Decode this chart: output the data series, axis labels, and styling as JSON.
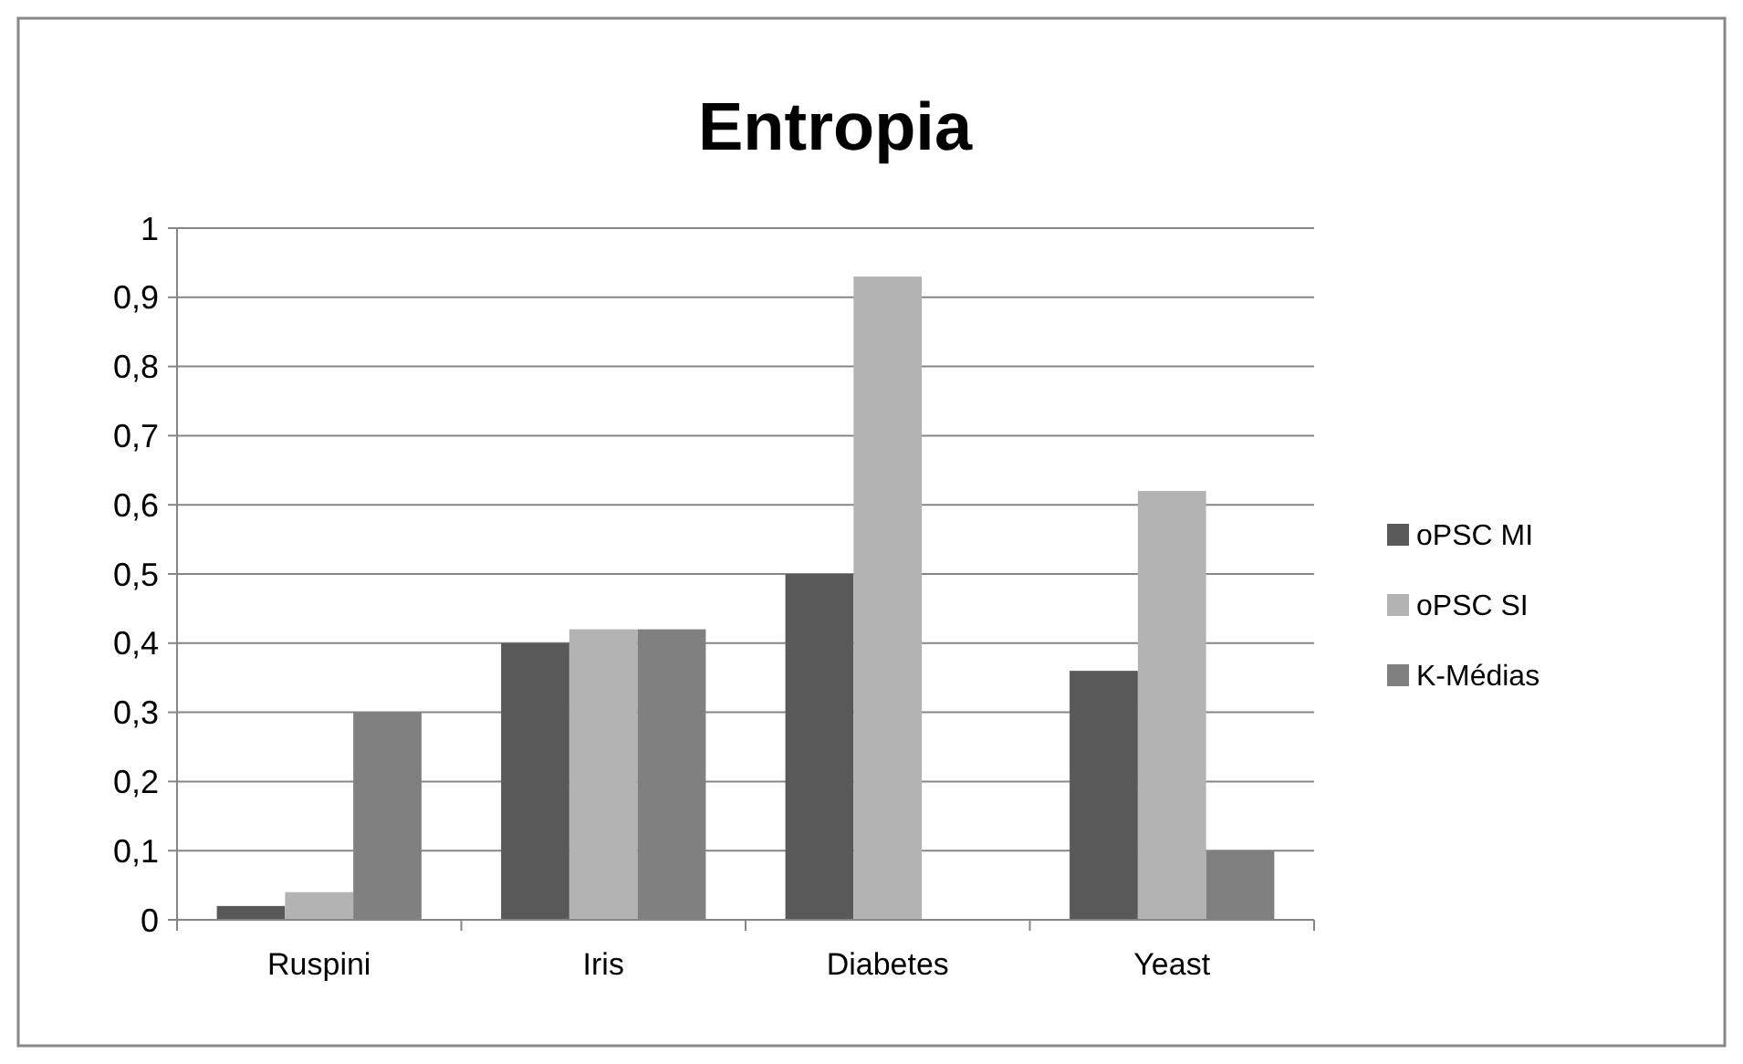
{
  "chart_data": {
    "type": "bar",
    "title": "Entropia",
    "categories": [
      "Ruspini",
      "Iris",
      "Diabetes",
      "Yeast"
    ],
    "series": [
      {
        "name": "oPSC MI",
        "color": "#595959",
        "values": [
          0.02,
          0.4,
          0.5,
          0.36
        ]
      },
      {
        "name": "oPSC SI",
        "color": "#b3b3b3",
        "values": [
          0.04,
          0.42,
          0.93,
          0.62
        ]
      },
      {
        "name": "K-Médias",
        "color": "#808080",
        "values": [
          0.3,
          0.42,
          0,
          0.1
        ]
      }
    ],
    "ylim": [
      0,
      1
    ],
    "yticks": [
      0,
      {
        "value": 0.1,
        "label": "0,1"
      },
      {
        "value": 0.2,
        "label": "0,2"
      },
      {
        "value": 0.3,
        "label": "0,3"
      },
      {
        "value": 0.4,
        "label": "0,4"
      },
      {
        "value": 0.5,
        "label": "0,5"
      },
      {
        "value": 0.6,
        "label": "0,6"
      },
      {
        "value": 0.7,
        "label": "0,7"
      },
      {
        "value": 0.8,
        "label": "0,8"
      },
      {
        "value": 0.9,
        "label": "0,9"
      },
      1
    ],
    "grid": "y",
    "legend": "right"
  }
}
